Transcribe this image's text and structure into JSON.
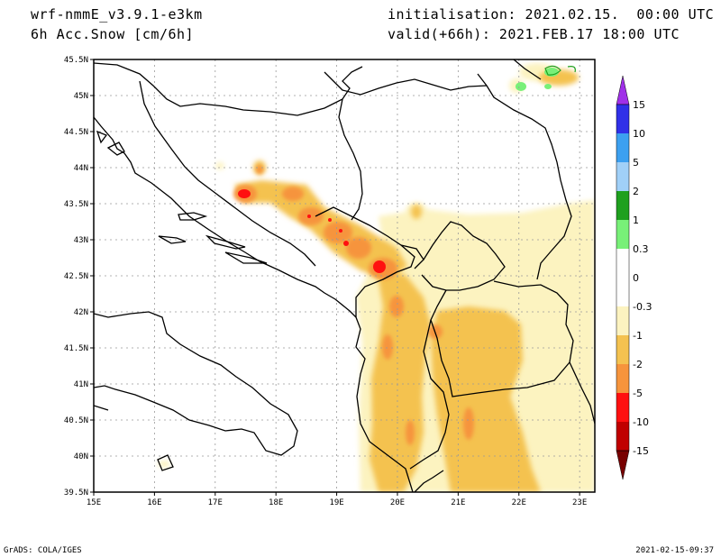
{
  "header": {
    "model": "wrf-nmmE_v3.9.1-e3km",
    "field": "6h Acc.Snow [cm/6h]",
    "init": "initialisation: 2021.02.15.  00:00 UTC",
    "valid": "valid(+66h): 2021.FEB.17 18:00 UTC"
  },
  "footer": {
    "left": "GrADS: COLA/IGES",
    "right": "2021-02-15-09:37"
  },
  "map": {
    "lat_labels": [
      "45.5N",
      "45N",
      "44.5N",
      "44N",
      "43.5N",
      "43N",
      "42.5N",
      "42N",
      "41.5N",
      "41N",
      "40.5N",
      "40N",
      "39.5N"
    ],
    "lon_labels": [
      "15E",
      "16E",
      "17E",
      "18E",
      "19E",
      "20E",
      "21E",
      "22E",
      "23E"
    ],
    "extent": {
      "lon_min": 15,
      "lon_max": 23.25,
      "lat_min": 39.5,
      "lat_max": 45.5
    }
  },
  "colorbar": {
    "labels": [
      "15",
      "10",
      "5",
      "2",
      "1",
      "0.3",
      "0",
      "-0.3",
      "-1",
      "-2",
      "-5",
      "-10",
      "-15"
    ],
    "colors": {
      "top_arrow": "#a030e8",
      "c_10_15": "#3030e8",
      "c_5_10": "#3ca0f0",
      "c_2_5": "#a0d0f8",
      "c_1_2": "#1fa01f",
      "c_03_1": "#78f078",
      "c_0": "#ffffff",
      "c_n1_n03": "#fcf3c0",
      "c_n2_n1": "#f4c250",
      "c_n5_n2": "#f6943c",
      "c_n10_n5": "#ff1010",
      "c_n15_n10": "#c00000",
      "bottom_arrow": "#780000"
    }
  }
}
